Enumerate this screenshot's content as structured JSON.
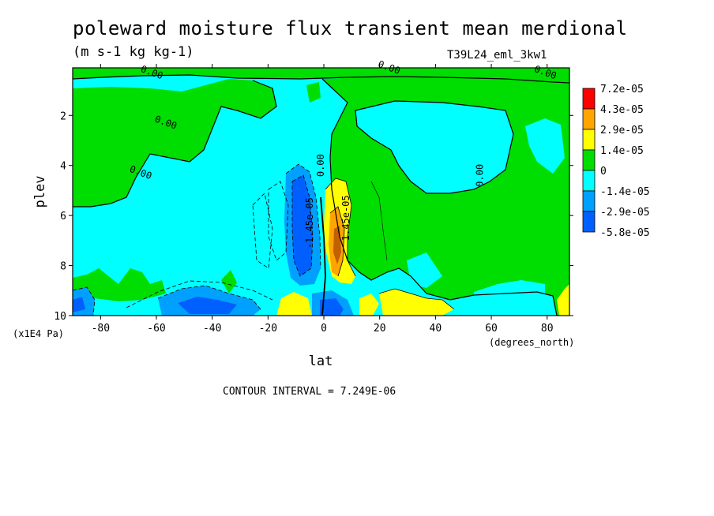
{
  "chart_data": {
    "type": "heatmap",
    "title": "poleward moisture flux transient mean merdional",
    "units_label": "(m s-1 kg kg-1)",
    "run_label": "T39L24_eml_3kw1",
    "contour_note": "CONTOUR INTERVAL = 7.249E-06",
    "xlabel": "lat",
    "ylabel": "plev",
    "x_unit_label": "(degrees_north)",
    "y_unit_label": "(x1E4 Pa)",
    "xlim": [
      -90,
      88
    ],
    "ylim": [
      10,
      0.1
    ],
    "x_ticks": [
      -80,
      -60,
      -40,
      -20,
      0,
      20,
      40,
      60,
      80
    ],
    "x_tick_labels": [
      "-80",
      "-60",
      "-40",
      "-20",
      "0",
      "20",
      "40",
      "60",
      "80"
    ],
    "y_ticks": [
      2,
      4,
      6,
      8,
      10
    ],
    "y_tick_labels": [
      "2",
      "4",
      "6",
      "8",
      "10"
    ],
    "legend": {
      "placement": "right",
      "levels": [
        "7.2e-05",
        "4.3e-05",
        "2.9e-05",
        "1.4e-05",
        "0",
        "-1.4e-05",
        "-2.9e-05",
        "-5.8e-05"
      ],
      "colors": [
        "#ff0000",
        "#ffa500",
        "#ffff00",
        "#00dd00",
        "#00ffff",
        "#00a0ff",
        "#0060ff"
      ]
    },
    "contour_labels": [
      {
        "text": "0.00",
        "lat": -62,
        "plev": 0.4
      },
      {
        "text": "0.00",
        "lat": -57,
        "plev": 2.4
      },
      {
        "text": "0.00",
        "lat": -66,
        "plev": 4.4
      },
      {
        "text": "0.00",
        "lat": 23,
        "plev": 0.2
      },
      {
        "text": "0.00",
        "lat": 79,
        "plev": 0.4
      },
      {
        "text": "0.00",
        "lat": 0,
        "plev": 4.0
      },
      {
        "text": "0.00",
        "lat": 57,
        "plev": 4.4
      },
      {
        "text": "-1.45e-05",
        "lat": -4,
        "plev": 6.3
      },
      {
        "text": "1.45e-05",
        "lat": 9,
        "plev": 6.1
      }
    ]
  },
  "colors": {
    "positive_1": "#00dd00",
    "negative_1": "#00ffff",
    "negative_2": "#00a0ff",
    "negative_3": "#0060ff",
    "positive_2": "#ffff00",
    "positive_3": "#ffa500",
    "positive_4": "#ff0000"
  }
}
